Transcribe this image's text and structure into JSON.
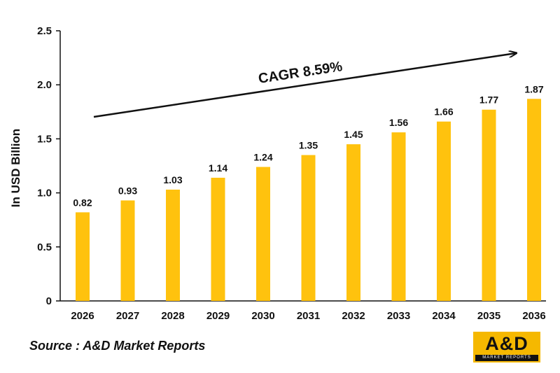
{
  "chart_data": {
    "type": "bar",
    "categories": [
      "2026",
      "2027",
      "2028",
      "2029",
      "2030",
      "2031",
      "2032",
      "2033",
      "2034",
      "2035",
      "2036"
    ],
    "values": [
      0.82,
      0.93,
      1.03,
      1.14,
      1.24,
      1.35,
      1.45,
      1.56,
      1.66,
      1.77,
      1.87
    ],
    "value_labels": [
      "0.82",
      "0.93",
      "1.03",
      "1.14",
      "1.24",
      "1.35",
      "1.45",
      "1.56",
      "1.66",
      "1.77",
      "1.87"
    ],
    "ylabel": "In USD Billion",
    "ylim": [
      0,
      2.5
    ],
    "yticks": [
      "0",
      "0.5",
      "1.0",
      "1.5",
      "2.0",
      "2.5"
    ],
    "grid": false,
    "bar_color": "#ffc20e",
    "annotation": "CAGR 8.59%"
  },
  "source": "Source : A&D Market Reports",
  "logo": {
    "main": "A&D",
    "sub": "MARKET REPORTS",
    "color": "#f5b800"
  }
}
